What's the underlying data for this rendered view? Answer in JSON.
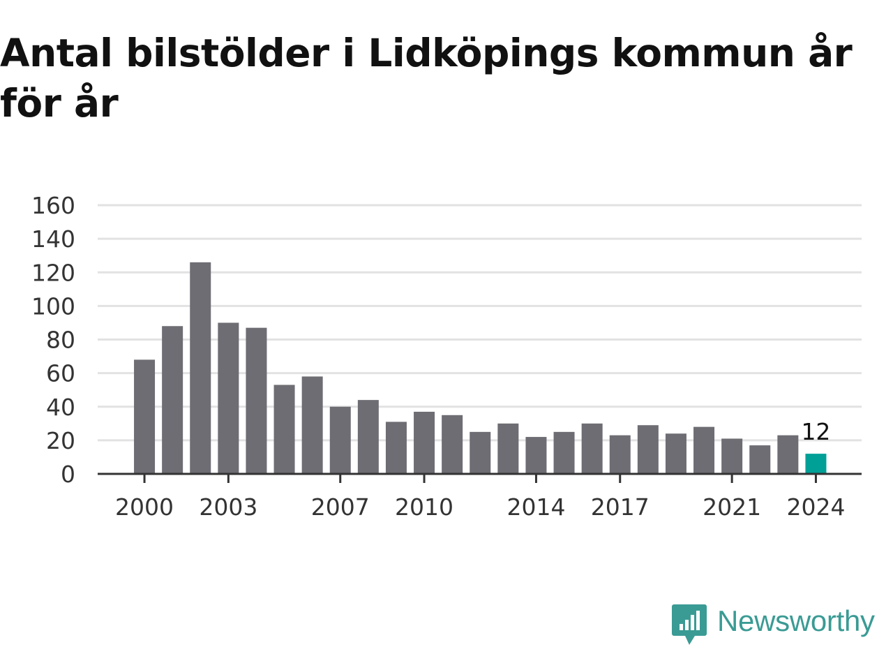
{
  "title": "Antal bilstölder i Lidköpings kommun år för år",
  "brand": {
    "name": "Newsworthy",
    "icon": "newsworthy-bar-chart-logo-icon",
    "color": "#3a9b94"
  },
  "chart_data": {
    "type": "bar",
    "title": "Antal bilstölder i Lidköpings kommun år för år",
    "xlabel": "",
    "ylabel": "",
    "ylim": [
      0,
      160
    ],
    "yticks": [
      0,
      20,
      40,
      60,
      80,
      100,
      120,
      140,
      160
    ],
    "xtick_labels": [
      "2000",
      "2003",
      "2007",
      "2010",
      "2014",
      "2017",
      "2021",
      "2024"
    ],
    "categories": [
      "2000",
      "2001",
      "2002",
      "2003",
      "2004",
      "2005",
      "2006",
      "2007",
      "2008",
      "2009",
      "2010",
      "2011",
      "2012",
      "2013",
      "2014",
      "2015",
      "2016",
      "2017",
      "2018",
      "2019",
      "2020",
      "2021",
      "2022",
      "2023",
      "2024"
    ],
    "values": [
      68,
      88,
      126,
      90,
      87,
      53,
      58,
      40,
      44,
      31,
      37,
      35,
      25,
      30,
      22,
      25,
      30,
      23,
      29,
      24,
      28,
      21,
      17,
      23,
      12
    ],
    "highlight": {
      "category": "2024",
      "value_label": "12"
    },
    "grid": true,
    "colors": {
      "bar": "#6e6d73",
      "highlight": "#00a096",
      "grid": "#e2e2e2",
      "axis": "#333333"
    }
  }
}
